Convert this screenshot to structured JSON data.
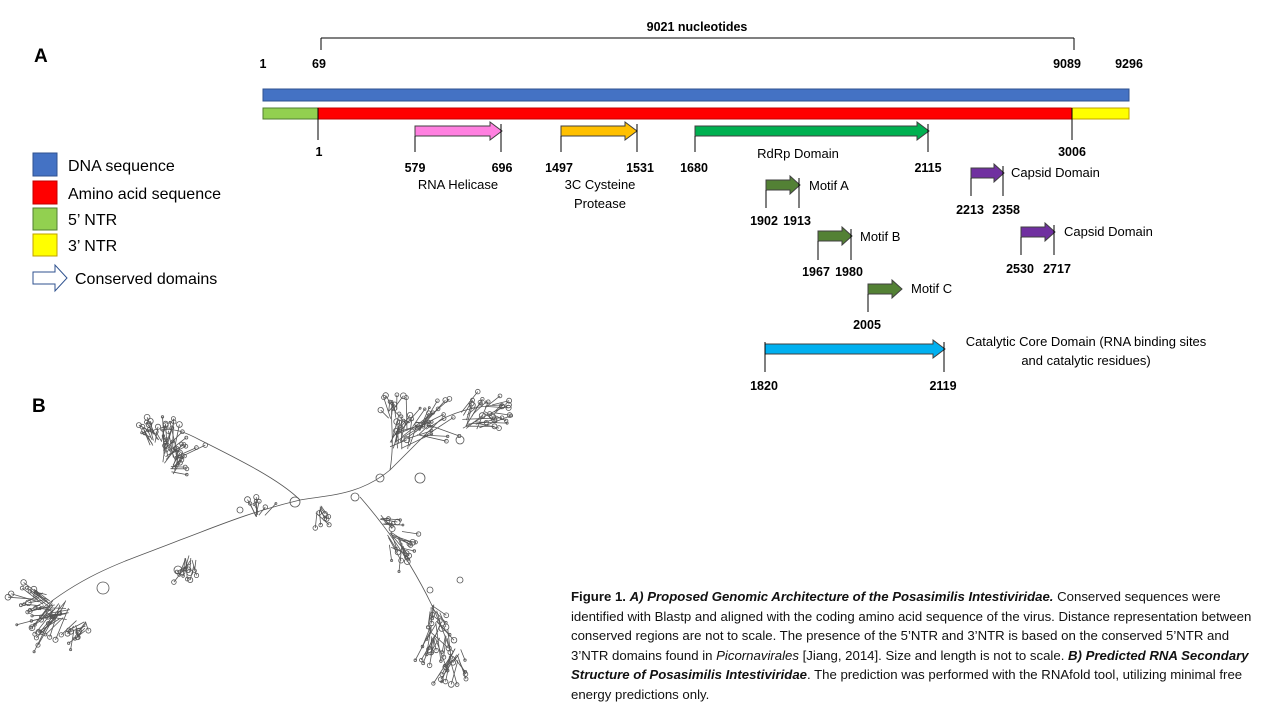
{
  "panels": {
    "a": "A",
    "b": "B"
  },
  "genome": {
    "length_label": "9021 nucleotides",
    "nt_ticks": [
      "1",
      "69",
      "9089",
      "9296"
    ],
    "aa_ticks": [
      "1",
      "3006"
    ]
  },
  "legend": [
    {
      "label": "DNA sequence",
      "color": "#4472c4"
    },
    {
      "label": "Amino acid sequence",
      "color": "#ff0000"
    },
    {
      "label": "5’ NTR",
      "color": "#92d050"
    },
    {
      "label": "3’ NTR",
      "color": "#ffff00"
    },
    {
      "label": "Conserved domains",
      "color": "#ffffff"
    }
  ],
  "domains": [
    {
      "name": "RNA Helicase",
      "start": "579",
      "end": "696",
      "color": "#ff80e0"
    },
    {
      "name_line1": "3C Cysteine",
      "name_line2": "Protease",
      "start": "1497",
      "end": "1531",
      "color": "#ffc000"
    },
    {
      "name": "RdRp Domain",
      "start": "1680",
      "end": "2115",
      "color": "#00b050"
    },
    {
      "name": "Motif A",
      "start": "1902",
      "end": "1913",
      "color": "#538135"
    },
    {
      "name": "Motif B",
      "start": "1967",
      "end": "1980",
      "color": "#538135"
    },
    {
      "name": "Motif C",
      "start": "2005",
      "color": "#538135"
    },
    {
      "name": "Capsid Domain",
      "start": "2213",
      "end": "2358",
      "color": "#7030a0"
    },
    {
      "name": "Capsid Domain",
      "start": "2530",
      "end": "2717",
      "color": "#7030a0"
    },
    {
      "name_line1": "Catalytic Core Domain (RNA binding sites",
      "name_line2": "and catalytic residues)",
      "start": "1820",
      "end": "2119",
      "color": "#00b0f0"
    }
  ],
  "caption": {
    "fig": "Figure 1.",
    "a_title": "A) Proposed Genomic Architecture of the Posasimilis Intestiviridae.",
    "t1": " Conserved sequences were identified with Blastp and aligned with the coding amino acid sequence of the virus. Distance representation between conserved regions are not to scale. The presence of the 5’NTR and 3’NTR is based on the conserved 5’NTR and 3’NTR domains found in ",
    "italic_term": "Picornavirales",
    "t2": " [Jiang, 2014]. Size and length is not to scale.  ",
    "b_title": "B) Predicted RNA Secondary Structure of Posasimilis Intestiviridae",
    "t3": ". The prediction was performed with the RNAfold tool, utilizing minimal free energy predictions only."
  }
}
